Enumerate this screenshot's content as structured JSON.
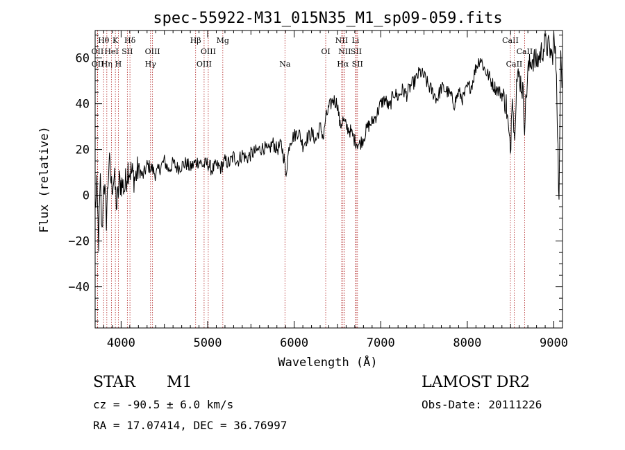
{
  "chart_data": {
    "type": "line",
    "title": "spec-55922-M31_015N35_M1_sp09-059.fits",
    "xlabel": "Wavelength (Å)",
    "ylabel": "Flux (relative)",
    "xlim": [
      3700,
      9100
    ],
    "ylim": [
      -58,
      72
    ],
    "xticks": [
      4000,
      5000,
      6000,
      7000,
      8000,
      9000
    ],
    "yticks": [
      -40,
      -20,
      0,
      20,
      40,
      60
    ],
    "grid": false,
    "series": [
      {
        "x": [
          3700,
          3720,
          3740,
          3760,
          3780,
          3800,
          3830,
          3860,
          3890,
          3920,
          3950,
          3980,
          4010,
          4040,
          4080,
          4120,
          4160,
          4200,
          4250,
          4300,
          4350,
          4400,
          4450,
          4500,
          4550,
          4600,
          4650,
          4700,
          4750,
          4800,
          4850,
          4900,
          4950,
          5000,
          5050,
          5100,
          5150,
          5200,
          5250,
          5300,
          5350,
          5400,
          5450,
          5500,
          5550,
          5600,
          5650,
          5700,
          5750,
          5800,
          5850,
          5890,
          5900,
          5950,
          6000,
          6050,
          6100,
          6150,
          6200,
          6250,
          6300,
          6340,
          6360,
          6400,
          6450,
          6500,
          6530,
          6563,
          6600,
          6650,
          6700,
          6750,
          6800,
          6850,
          6900,
          6950,
          7000,
          7050,
          7100,
          7150,
          7200,
          7250,
          7300,
          7350,
          7400,
          7450,
          7500,
          7550,
          7600,
          7650,
          7700,
          7750,
          7800,
          7850,
          7900,
          7950,
          8000,
          8050,
          8100,
          8150,
          8200,
          8250,
          8300,
          8350,
          8400,
          8450,
          8498,
          8520,
          8542,
          8570,
          8600,
          8640,
          8662,
          8700,
          8750,
          8800,
          8850,
          8900,
          8950,
          8980,
          9000,
          9030,
          9060,
          9080,
          9100
        ],
        "y": [
          -5,
          2,
          -20,
          5,
          -18,
          8,
          -10,
          15,
          4,
          8,
          -5,
          6,
          5,
          3,
          12,
          10,
          7,
          12,
          8,
          13,
          12,
          9,
          12,
          15,
          11,
          14,
          12,
          13,
          14,
          12,
          14,
          15,
          13,
          14,
          11,
          13,
          12,
          15,
          14,
          17,
          15,
          18,
          16,
          18,
          19,
          20,
          21,
          19,
          23,
          20,
          22,
          15,
          8,
          24,
          26,
          28,
          22,
          25,
          27,
          24,
          30,
          25,
          33,
          38,
          42,
          40,
          30,
          33,
          30,
          28,
          24,
          22,
          25,
          30,
          32,
          35,
          40,
          42,
          38,
          45,
          43,
          46,
          44,
          48,
          50,
          54,
          52,
          48,
          45,
          42,
          47,
          46,
          44,
          40,
          45,
          42,
          47,
          48,
          56,
          60,
          55,
          52,
          48,
          46,
          44,
          40,
          18,
          48,
          25,
          50,
          52,
          46,
          32,
          54,
          60,
          58,
          62,
          66,
          64,
          60,
          68,
          55,
          -5,
          62,
          48
        ]
      }
    ],
    "lines": [
      {
        "label": "Hθ",
        "x": 3798,
        "row": 1
      },
      {
        "label": "OII",
        "x": 3727,
        "row": 2
      },
      {
        "label": "OII",
        "x": 3729,
        "row": 3
      },
      {
        "label": "Hη",
        "x": 3835,
        "row": 3
      },
      {
        "label": "HeI",
        "x": 3889,
        "row": 2
      },
      {
        "label": "K",
        "x": 3934,
        "row": 1
      },
      {
        "label": "H",
        "x": 3968,
        "row": 3
      },
      {
        "label": "SII",
        "x": 4072,
        "row": 2
      },
      {
        "label": "Hδ",
        "x": 4102,
        "row": 1
      },
      {
        "label": "OIII",
        "x": 4363,
        "row": 2
      },
      {
        "label": "Hγ",
        "x": 4340,
        "row": 3
      },
      {
        "label": "Hβ",
        "x": 4861,
        "row": 1
      },
      {
        "label": "OIII",
        "x": 4959,
        "row": 3
      },
      {
        "label": "OIII",
        "x": 5007,
        "row": 2
      },
      {
        "label": "Mg",
        "x": 5175,
        "row": 1
      },
      {
        "label": "Na",
        "x": 5893,
        "row": 3
      },
      {
        "label": "OI",
        "x": 6364,
        "row": 2
      },
      {
        "label": "NII",
        "x": 6548,
        "row": 1
      },
      {
        "label": "NII",
        "x": 6583,
        "row": 2
      },
      {
        "label": "Hα",
        "x": 6563,
        "row": 3
      },
      {
        "label": "Li",
        "x": 6708,
        "row": 1
      },
      {
        "label": "SII",
        "x": 6717,
        "row": 2
      },
      {
        "label": "SII",
        "x": 6731,
        "row": 3
      },
      {
        "label": "CaII",
        "x": 8498,
        "row": 1
      },
      {
        "label": "CaII",
        "x": 8542,
        "row": 3
      },
      {
        "label": "CaII",
        "x": 8662,
        "row": 2
      }
    ]
  },
  "info": {
    "object_class": "STAR",
    "subclass": "M1",
    "survey": "LAMOST DR2",
    "redshift": "cz = -90.5 ± 6.0 km/s",
    "obs_date": "Obs-Date: 20111226",
    "coords": "RA =  17.07414, DEC =  36.76997"
  }
}
